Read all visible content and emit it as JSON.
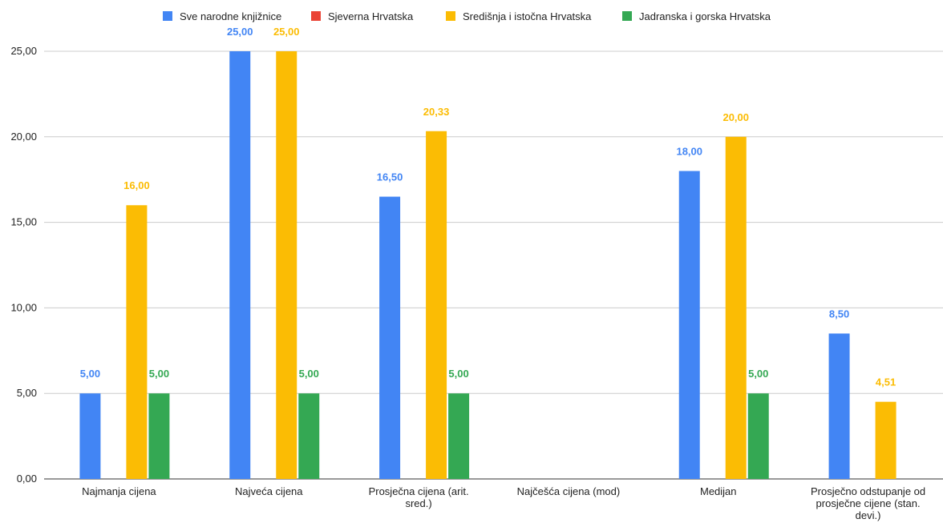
{
  "chart_data": {
    "type": "bar",
    "categories": [
      [
        "Najmanja cijena"
      ],
      [
        "Najveća cijena"
      ],
      [
        "Prosječna cijena (arit.",
        "sred.)"
      ],
      [
        "Najčešća cijena (mod)"
      ],
      [
        "Medijan"
      ],
      [
        "Prosječno odstupanje od",
        "prosječne cijene (stan.",
        "devi.)"
      ]
    ],
    "series": [
      {
        "name": "Sve narodne knjižnice",
        "color": "#4285F4",
        "values": [
          5.0,
          25.0,
          16.5,
          null,
          18.0,
          8.5
        ],
        "labels": [
          "5,00",
          "25,00",
          "16,50",
          "",
          "18,00",
          "8,50"
        ]
      },
      {
        "name": "Sjeverna Hrvatska",
        "color": "#EA4335",
        "values": [
          null,
          null,
          null,
          null,
          null,
          null
        ],
        "labels": [
          "",
          "",
          "",
          "",
          "",
          ""
        ]
      },
      {
        "name": "Središnja i istočna Hrvatska",
        "color": "#FBBC04",
        "values": [
          16.0,
          25.0,
          20.33,
          null,
          20.0,
          4.51
        ],
        "labels": [
          "16,00",
          "25,00",
          "20,33",
          "",
          "20,00",
          "4,51"
        ]
      },
      {
        "name": "Jadranska i gorska Hrvatska",
        "color": "#34A853",
        "values": [
          5.0,
          5.0,
          5.0,
          null,
          5.0,
          null
        ],
        "labels": [
          "5,00",
          "5,00",
          "5,00",
          "",
          "5,00",
          ""
        ]
      }
    ],
    "y_ticks": [
      0,
      5,
      10,
      15,
      20,
      25
    ],
    "y_tick_labels": [
      "0,00",
      "5,00",
      "10,00",
      "15,00",
      "20,00",
      "25,00"
    ],
    "ylim": [
      0,
      25
    ],
    "grid": true,
    "legend_position": "top-center"
  }
}
